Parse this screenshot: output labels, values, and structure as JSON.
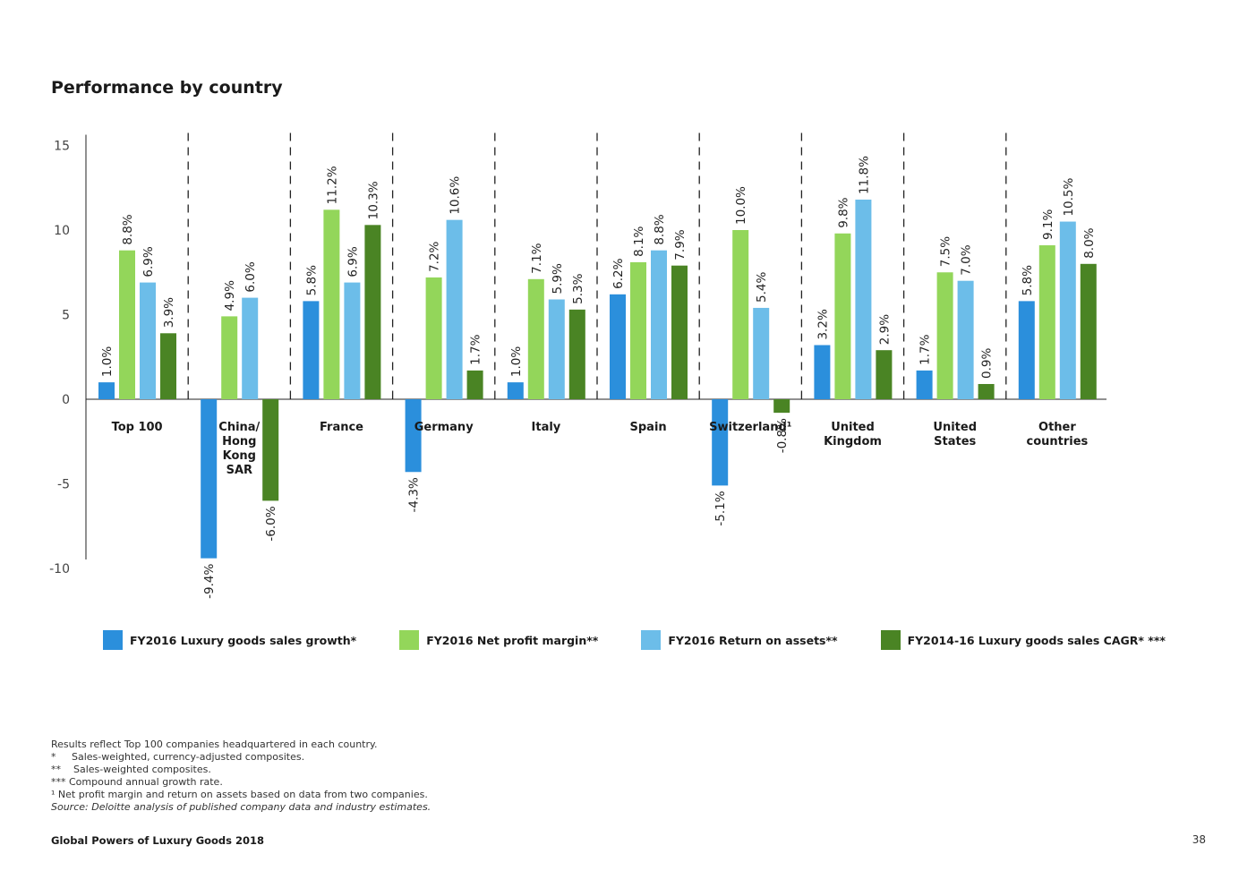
{
  "page": {
    "title": "Performance by country",
    "footer_title": "Global Powers of Luxury Goods 2018",
    "page_number": "38"
  },
  "notes": [
    "Results reflect Top 100 companies headquartered in each country.",
    "*     Sales-weighted, currency-adjusted composites.",
    "**    Sales-weighted composites.",
    "*** Compound annual growth rate.",
    "¹ Net profit margin and return on assets based on data from two companies."
  ],
  "source": "Source: Deloitte analysis of published company data and industry estimates.",
  "colors": {
    "sales_growth": "#2b8fdc",
    "net_profit_margin": "#93d65a",
    "return_on_assets": "#6cbde9",
    "sales_cagr": "#4a8424",
    "axis": "#222222",
    "separator": "#222222"
  },
  "chart_data": {
    "type": "bar",
    "title": "",
    "xlabel": "",
    "ylabel": "",
    "ylim": [
      -10,
      15
    ],
    "yticks": [
      -10,
      -5,
      0,
      5,
      10,
      15
    ],
    "grid": false,
    "legend": "bottom",
    "categories": [
      "Top 100",
      "China/ Hong Kong SAR",
      "France",
      "Germany",
      "Italy",
      "Spain",
      "Switzerland¹",
      "United Kingdom",
      "United States",
      "Other countries"
    ],
    "category_label_lines": [
      [
        "Top 100"
      ],
      [
        "China/",
        "Hong",
        "Kong",
        "SAR"
      ],
      [
        "France"
      ],
      [
        "Germany"
      ],
      [
        "Italy"
      ],
      [
        "Spain"
      ],
      [
        "Switzerland¹"
      ],
      [
        "United",
        "Kingdom"
      ],
      [
        "United",
        "States"
      ],
      [
        "Other",
        "countries"
      ]
    ],
    "series": [
      {
        "name": "FY2016 Luxury goods sales growth*",
        "color_key": "sales_growth",
        "values": [
          1.0,
          -9.4,
          5.8,
          -4.3,
          1.0,
          6.2,
          -5.1,
          3.2,
          1.7,
          5.8
        ],
        "labels": [
          "1.0%",
          "-9.4%",
          "5.8%",
          "-4.3%",
          "1.0%",
          "6.2%",
          "-5.1%",
          "3.2%",
          "1.7%",
          "5.8%"
        ]
      },
      {
        "name": "FY2016 Net profit margin**",
        "color_key": "net_profit_margin",
        "values": [
          8.8,
          4.9,
          11.2,
          7.2,
          7.1,
          8.1,
          10.0,
          9.8,
          7.5,
          9.1
        ],
        "labels": [
          "8.8%",
          "4.9%",
          "11.2%",
          "7.2%",
          "7.1%",
          "8.1%",
          "10.0%",
          "9.8%",
          "7.5%",
          "9.1%"
        ]
      },
      {
        "name": "FY2016 Return on assets**",
        "color_key": "return_on_assets",
        "values": [
          6.9,
          6.0,
          6.9,
          10.6,
          5.9,
          8.8,
          5.4,
          11.8,
          7.0,
          10.5
        ],
        "labels": [
          "6.9%",
          "6.0%",
          "6.9%",
          "10.6%",
          "5.9%",
          "8.8%",
          "5.4%",
          "11.8%",
          "7.0%",
          "10.5%"
        ]
      },
      {
        "name": "FY2014-16 Luxury goods sales CAGR* ***",
        "color_key": "sales_cagr",
        "values": [
          3.9,
          -6.0,
          10.3,
          1.7,
          5.3,
          7.9,
          -0.8,
          2.9,
          0.9,
          8.0
        ],
        "labels": [
          "3.9%",
          "-6.0%",
          "10.3%",
          "1.7%",
          "5.3%",
          "7.9%",
          "-0.8%",
          "2.9%",
          "0.9%",
          "8.0%"
        ]
      }
    ]
  }
}
